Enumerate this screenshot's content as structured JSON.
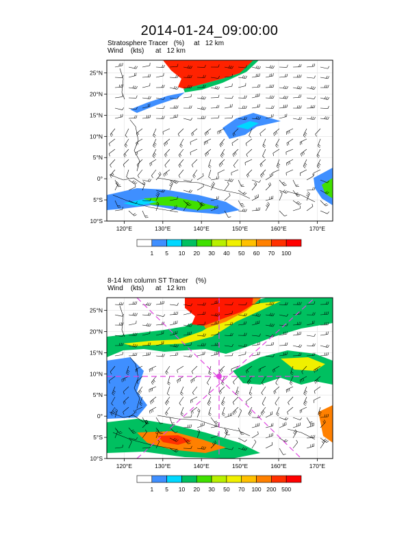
{
  "title": "2014-01-24_09:00:00",
  "panels": [
    {
      "id": "top",
      "line1": "Stratosphere Tracer   (%)     at   12 km",
      "line2": "Wind    (kts)      at   12 km",
      "lat_labels": [
        "25°N",
        "20°N",
        "15°N",
        "10°N",
        "5°N",
        "0°",
        "5°S",
        "10°S"
      ],
      "lon_labels": [
        "120°E",
        "130°E",
        "140°E",
        "150°E",
        "160°E",
        "170°E"
      ],
      "colorbar": {
        "labels": [
          "1",
          "5",
          "10",
          "20",
          "30",
          "40",
          "50",
          "60",
          "70",
          "100"
        ],
        "colors": [
          "#ffffff",
          "#3f8fff",
          "#00d8ff",
          "#00c060",
          "#40e000",
          "#b8f000",
          "#f0f000",
          "#ffc000",
          "#ff8000",
          "#ff3000",
          "#ff0000"
        ]
      }
    },
    {
      "id": "bottom",
      "line1": "8-14 km column ST Tracer    (%)",
      "line2": "Wind    (kts)      at   12 km",
      "lat_labels": [
        "25°N",
        "20°N",
        "15°N",
        "10°N",
        "5°N",
        "0°",
        "5°S",
        "10°S"
      ],
      "lon_labels": [
        "120°E",
        "130°E",
        "140°E",
        "150°E",
        "160°E",
        "170°E"
      ],
      "colorbar": {
        "labels": [
          "1",
          "5",
          "10",
          "20",
          "30",
          "50",
          "70",
          "100",
          "200",
          "500"
        ],
        "colors": [
          "#ffffff",
          "#3f8fff",
          "#00d8ff",
          "#00c060",
          "#40e000",
          "#b8f000",
          "#f0f000",
          "#ffc000",
          "#ff8000",
          "#ff3000",
          "#ff0000"
        ]
      },
      "overlay_color": "#e040e0"
    }
  ]
}
